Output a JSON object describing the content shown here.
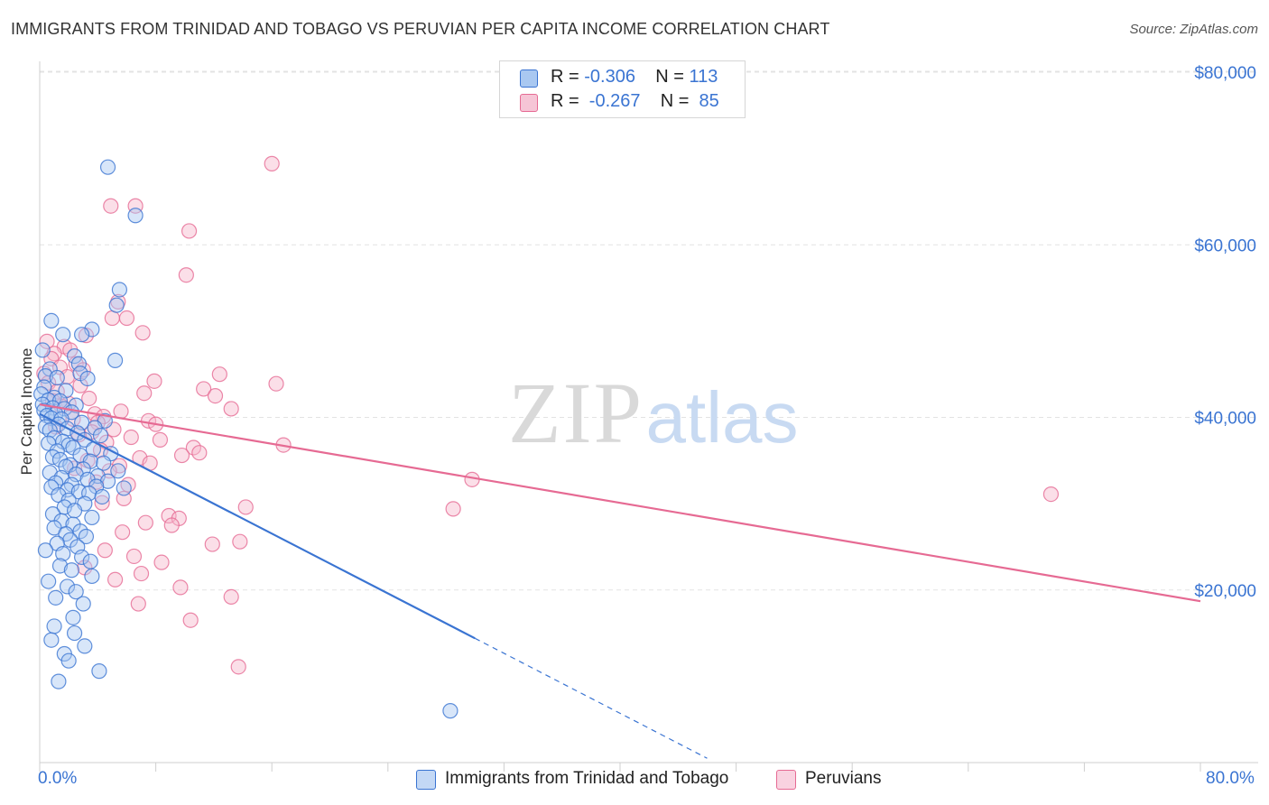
{
  "header": {
    "title": "IMMIGRANTS FROM TRINIDAD AND TOBAGO VS PERUVIAN PER CAPITA INCOME CORRELATION CHART",
    "source": "Source: ZipAtlas.com"
  },
  "legend": {
    "blue": {
      "r_label": "R = ",
      "r_value": "-0.306",
      "n_label": "N = ",
      "n_value": "113"
    },
    "pink": {
      "r_label": "R = ",
      "r_value": " -0.267",
      "n_label": "N = ",
      "n_value": " 85"
    }
  },
  "bottom_legend": {
    "blue_label": "Immigrants from Trinidad and Tobago",
    "pink_label": "Peruvians"
  },
  "watermark": {
    "zip": "ZIP",
    "atlas": "atlas"
  },
  "colors": {
    "blue": "#3a74d2",
    "blue_fill": "#a9c8f1",
    "pink": "#e66a93",
    "pink_fill": "#f6b9cd",
    "grid": "#e3e3e3",
    "tick_label": "#3a74d2"
  },
  "chart_data": {
    "type": "scatter",
    "title": "IMMIGRANTS FROM TRINIDAD AND TOBAGO VS PERUVIAN PER CAPITA INCOME CORRELATION CHART",
    "xlabel": "",
    "ylabel": "Per Capita Income",
    "xlim": [
      0,
      80
    ],
    "ylim": [
      0,
      80000
    ],
    "x_tick_labels": [
      "0.0%",
      "80.0%"
    ],
    "y_ticks": [
      20000,
      40000,
      60000,
      80000
    ],
    "y_tick_labels": [
      "$20,000",
      "$40,000",
      "$60,000",
      "$80,000"
    ],
    "grid": true,
    "legend_position": "top-center",
    "series": [
      {
        "name": "Immigrants from Trinidad and Tobago",
        "color": "#3a74d2",
        "r": -0.306,
        "n": 113,
        "trend": {
          "x": [
            0.0,
            30.0
          ],
          "y": [
            40400,
            14400
          ]
        },
        "trend_dashed": {
          "x": [
            30.0,
            46.0
          ],
          "y": [
            14400,
            500
          ]
        },
        "points": [
          [
            4.7,
            69000
          ],
          [
            6.6,
            63400
          ],
          [
            5.5,
            54800
          ],
          [
            5.3,
            53000
          ],
          [
            0.8,
            51200
          ],
          [
            3.6,
            50200
          ],
          [
            1.6,
            49600
          ],
          [
            2.9,
            49600
          ],
          [
            0.2,
            47800
          ],
          [
            2.4,
            47100
          ],
          [
            5.2,
            46600
          ],
          [
            2.7,
            46200
          ],
          [
            0.7,
            45600
          ],
          [
            2.8,
            45100
          ],
          [
            0.4,
            44800
          ],
          [
            1.2,
            44600
          ],
          [
            3.3,
            44500
          ],
          [
            0.3,
            43500
          ],
          [
            1.8,
            43100
          ],
          [
            0.1,
            42700
          ],
          [
            1.0,
            42300
          ],
          [
            0.6,
            42000
          ],
          [
            1.4,
            41900
          ],
          [
            0.2,
            41500
          ],
          [
            2.5,
            41400
          ],
          [
            0.9,
            41100
          ],
          [
            1.7,
            41000
          ],
          [
            0.3,
            40800
          ],
          [
            2.2,
            40600
          ],
          [
            1.1,
            40400
          ],
          [
            0.5,
            40200
          ],
          [
            0.8,
            39900
          ],
          [
            1.5,
            39800
          ],
          [
            4.5,
            39600
          ],
          [
            2.9,
            39400
          ],
          [
            1.3,
            39200
          ],
          [
            0.4,
            38900
          ],
          [
            3.8,
            38800
          ],
          [
            1.9,
            38700
          ],
          [
            0.7,
            38500
          ],
          [
            2.6,
            38200
          ],
          [
            4.2,
            37900
          ],
          [
            1.0,
            37600
          ],
          [
            3.1,
            37400
          ],
          [
            1.6,
            37200
          ],
          [
            0.6,
            37000
          ],
          [
            2.0,
            36800
          ],
          [
            2.3,
            36500
          ],
          [
            3.7,
            36300
          ],
          [
            1.2,
            36100
          ],
          [
            4.9,
            35800
          ],
          [
            2.8,
            35600
          ],
          [
            0.9,
            35400
          ],
          [
            1.4,
            35100
          ],
          [
            3.5,
            34900
          ],
          [
            4.4,
            34700
          ],
          [
            2.1,
            34500
          ],
          [
            1.8,
            34300
          ],
          [
            3.0,
            34000
          ],
          [
            5.4,
            33800
          ],
          [
            0.7,
            33600
          ],
          [
            2.5,
            33400
          ],
          [
            4.0,
            33200
          ],
          [
            1.5,
            33000
          ],
          [
            3.3,
            32800
          ],
          [
            4.7,
            32600
          ],
          [
            1.1,
            32400
          ],
          [
            2.2,
            32200
          ],
          [
            3.9,
            32000
          ],
          [
            0.8,
            31900
          ],
          [
            5.8,
            31800
          ],
          [
            1.9,
            31600
          ],
          [
            2.7,
            31400
          ],
          [
            3.4,
            31200
          ],
          [
            1.3,
            31000
          ],
          [
            4.3,
            30800
          ],
          [
            2.0,
            30400
          ],
          [
            3.1,
            30000
          ],
          [
            1.7,
            29600
          ],
          [
            2.4,
            29200
          ],
          [
            0.9,
            28800
          ],
          [
            3.6,
            28400
          ],
          [
            1.5,
            28000
          ],
          [
            2.3,
            27600
          ],
          [
            1.0,
            27200
          ],
          [
            2.8,
            26800
          ],
          [
            1.8,
            26500
          ],
          [
            3.2,
            26200
          ],
          [
            2.1,
            25800
          ],
          [
            1.2,
            25400
          ],
          [
            2.6,
            25000
          ],
          [
            0.4,
            24600
          ],
          [
            1.6,
            24200
          ],
          [
            2.9,
            23800
          ],
          [
            3.5,
            23300
          ],
          [
            1.4,
            22800
          ],
          [
            2.2,
            22300
          ],
          [
            3.6,
            21600
          ],
          [
            0.6,
            21000
          ],
          [
            1.9,
            20400
          ],
          [
            2.5,
            19800
          ],
          [
            1.1,
            19100
          ],
          [
            3.0,
            18400
          ],
          [
            2.3,
            16800
          ],
          [
            1.0,
            15800
          ],
          [
            2.4,
            15000
          ],
          [
            0.8,
            14200
          ],
          [
            3.1,
            13500
          ],
          [
            1.7,
            12600
          ],
          [
            2.0,
            11800
          ],
          [
            4.1,
            10600
          ],
          [
            1.3,
            9400
          ],
          [
            28.3,
            6000
          ]
        ]
      },
      {
        "name": "Peruvians",
        "color": "#e66a93",
        "r": -0.267,
        "n": 85,
        "trend": {
          "x": [
            0.0,
            80.0
          ],
          "y": [
            41500,
            18700
          ]
        },
        "points": [
          [
            16.0,
            69400
          ],
          [
            4.9,
            64500
          ],
          [
            6.6,
            64500
          ],
          [
            10.3,
            61600
          ],
          [
            10.1,
            56500
          ],
          [
            5.4,
            53400
          ],
          [
            5.0,
            51500
          ],
          [
            6.0,
            51500
          ],
          [
            7.1,
            49800
          ],
          [
            3.2,
            49500
          ],
          [
            0.5,
            48800
          ],
          [
            1.7,
            48200
          ],
          [
            2.1,
            47800
          ],
          [
            1.0,
            47400
          ],
          [
            0.8,
            46800
          ],
          [
            2.5,
            46200
          ],
          [
            1.4,
            45800
          ],
          [
            3.0,
            45500
          ],
          [
            0.3,
            45100
          ],
          [
            12.4,
            45000
          ],
          [
            1.9,
            44700
          ],
          [
            7.9,
            44200
          ],
          [
            0.6,
            44000
          ],
          [
            16.3,
            43900
          ],
          [
            2.8,
            43700
          ],
          [
            11.3,
            43300
          ],
          [
            1.2,
            43000
          ],
          [
            7.2,
            42800
          ],
          [
            12.1,
            42500
          ],
          [
            3.4,
            42200
          ],
          [
            0.9,
            41900
          ],
          [
            2.0,
            41600
          ],
          [
            1.5,
            41300
          ],
          [
            13.2,
            41000
          ],
          [
            5.6,
            40700
          ],
          [
            3.8,
            40400
          ],
          [
            4.4,
            40100
          ],
          [
            2.3,
            39800
          ],
          [
            7.5,
            39600
          ],
          [
            4.0,
            39400
          ],
          [
            8.0,
            39200
          ],
          [
            1.1,
            38900
          ],
          [
            5.1,
            38600
          ],
          [
            3.6,
            38300
          ],
          [
            2.7,
            38000
          ],
          [
            6.3,
            37700
          ],
          [
            8.3,
            37400
          ],
          [
            4.6,
            37100
          ],
          [
            16.8,
            36800
          ],
          [
            10.6,
            36500
          ],
          [
            4.2,
            36200
          ],
          [
            11.0,
            35900
          ],
          [
            9.8,
            35600
          ],
          [
            6.9,
            35300
          ],
          [
            3.3,
            35000
          ],
          [
            7.6,
            34700
          ],
          [
            5.5,
            34400
          ],
          [
            2.4,
            34100
          ],
          [
            4.8,
            33800
          ],
          [
            29.8,
            32800
          ],
          [
            3.9,
            32500
          ],
          [
            6.1,
            32200
          ],
          [
            69.7,
            31100
          ],
          [
            5.8,
            30600
          ],
          [
            4.3,
            30100
          ],
          [
            14.2,
            29600
          ],
          [
            28.5,
            29400
          ],
          [
            8.9,
            28600
          ],
          [
            9.6,
            28300
          ],
          [
            7.3,
            27800
          ],
          [
            9.1,
            27500
          ],
          [
            5.7,
            26700
          ],
          [
            13.8,
            25600
          ],
          [
            11.9,
            25300
          ],
          [
            4.5,
            24600
          ],
          [
            6.5,
            23900
          ],
          [
            8.4,
            23200
          ],
          [
            3.1,
            22600
          ],
          [
            7.0,
            21900
          ],
          [
            5.2,
            21200
          ],
          [
            9.7,
            20300
          ],
          [
            13.2,
            19200
          ],
          [
            6.8,
            18400
          ],
          [
            10.4,
            16500
          ],
          [
            13.7,
            11100
          ]
        ]
      }
    ]
  }
}
